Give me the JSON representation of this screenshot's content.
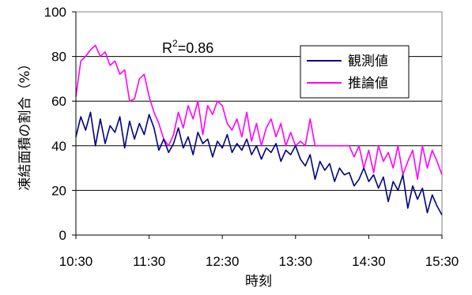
{
  "chart_data": {
    "type": "line",
    "title": "",
    "xlabel": "時刻",
    "ylabel": "凍結面積の割合（%）",
    "ylim": [
      0,
      100
    ],
    "yticks": [
      0,
      20,
      40,
      60,
      80,
      100
    ],
    "x_tick_labels": [
      "10:30",
      "11:30",
      "12:30",
      "13:30",
      "14:30",
      "15:30"
    ],
    "x_tick_minutes": [
      630,
      690,
      750,
      810,
      870,
      930
    ],
    "xlim_minutes": [
      630,
      930
    ],
    "grid": "horizontal",
    "legend_position": "top-right",
    "annotation": {
      "base": "R",
      "sup": "2",
      "rest": "=0.86"
    },
    "series": [
      {
        "name": "観測値",
        "color": "#000080",
        "x_minutes": [
          630,
          634,
          638,
          642,
          646,
          650,
          654,
          658,
          662,
          666,
          670,
          674,
          678,
          682,
          686,
          690,
          694,
          698,
          702,
          706,
          710,
          714,
          718,
          722,
          726,
          730,
          734,
          738,
          742,
          746,
          750,
          754,
          758,
          762,
          766,
          770,
          774,
          778,
          782,
          786,
          790,
          794,
          798,
          802,
          806,
          810,
          814,
          818,
          822,
          826,
          830,
          834,
          838,
          842,
          846,
          850,
          854,
          858,
          862,
          866,
          870,
          874,
          878,
          882,
          886,
          890,
          894,
          898,
          902,
          906,
          910,
          914,
          918,
          922,
          926,
          930
        ],
        "values": [
          44,
          53,
          47,
          55,
          40,
          52,
          41,
          49,
          46,
          53,
          39,
          51,
          43,
          50,
          45,
          54,
          48,
          38,
          43,
          37,
          41,
          48,
          39,
          44,
          36,
          46,
          41,
          43,
          35,
          42,
          39,
          45,
          37,
          41,
          38,
          43,
          36,
          40,
          34,
          39,
          37,
          41,
          33,
          38,
          36,
          40,
          34,
          31,
          36,
          25,
          33,
          29,
          32,
          24,
          30,
          27,
          28,
          22,
          25,
          30,
          24,
          27,
          21,
          26,
          15,
          24,
          20,
          27,
          12,
          22,
          16,
          21,
          10,
          18,
          13,
          9
        ]
      },
      {
        "name": "推論値",
        "color": "#ff00ff",
        "x_minutes": [
          630,
          634,
          638,
          642,
          646,
          650,
          654,
          658,
          662,
          666,
          670,
          674,
          678,
          682,
          686,
          690,
          694,
          698,
          702,
          706,
          710,
          714,
          718,
          722,
          726,
          730,
          734,
          738,
          742,
          746,
          750,
          754,
          758,
          762,
          766,
          770,
          774,
          778,
          782,
          786,
          790,
          794,
          798,
          802,
          806,
          810,
          814,
          818,
          822,
          826,
          830,
          834,
          838,
          842,
          846,
          850,
          854,
          858,
          862,
          866,
          870,
          874,
          878,
          882,
          886,
          890,
          894,
          898,
          902,
          906,
          910,
          914,
          918,
          922,
          926,
          930
        ],
        "values": [
          62,
          78,
          80,
          83,
          85,
          80,
          82,
          76,
          78,
          72,
          74,
          60,
          61,
          70,
          72,
          62,
          55,
          50,
          43,
          40,
          45,
          55,
          48,
          58,
          52,
          60,
          45,
          58,
          54,
          60,
          58,
          50,
          47,
          52,
          44,
          55,
          42,
          50,
          40,
          48,
          52,
          44,
          50,
          40,
          46,
          40,
          42,
          40,
          52,
          40,
          40,
          40,
          40,
          40,
          40,
          40,
          40,
          35,
          40,
          30,
          38,
          28,
          40,
          33,
          37,
          30,
          40,
          27,
          33,
          38,
          25,
          40,
          30,
          38,
          33,
          27
        ]
      }
    ]
  }
}
